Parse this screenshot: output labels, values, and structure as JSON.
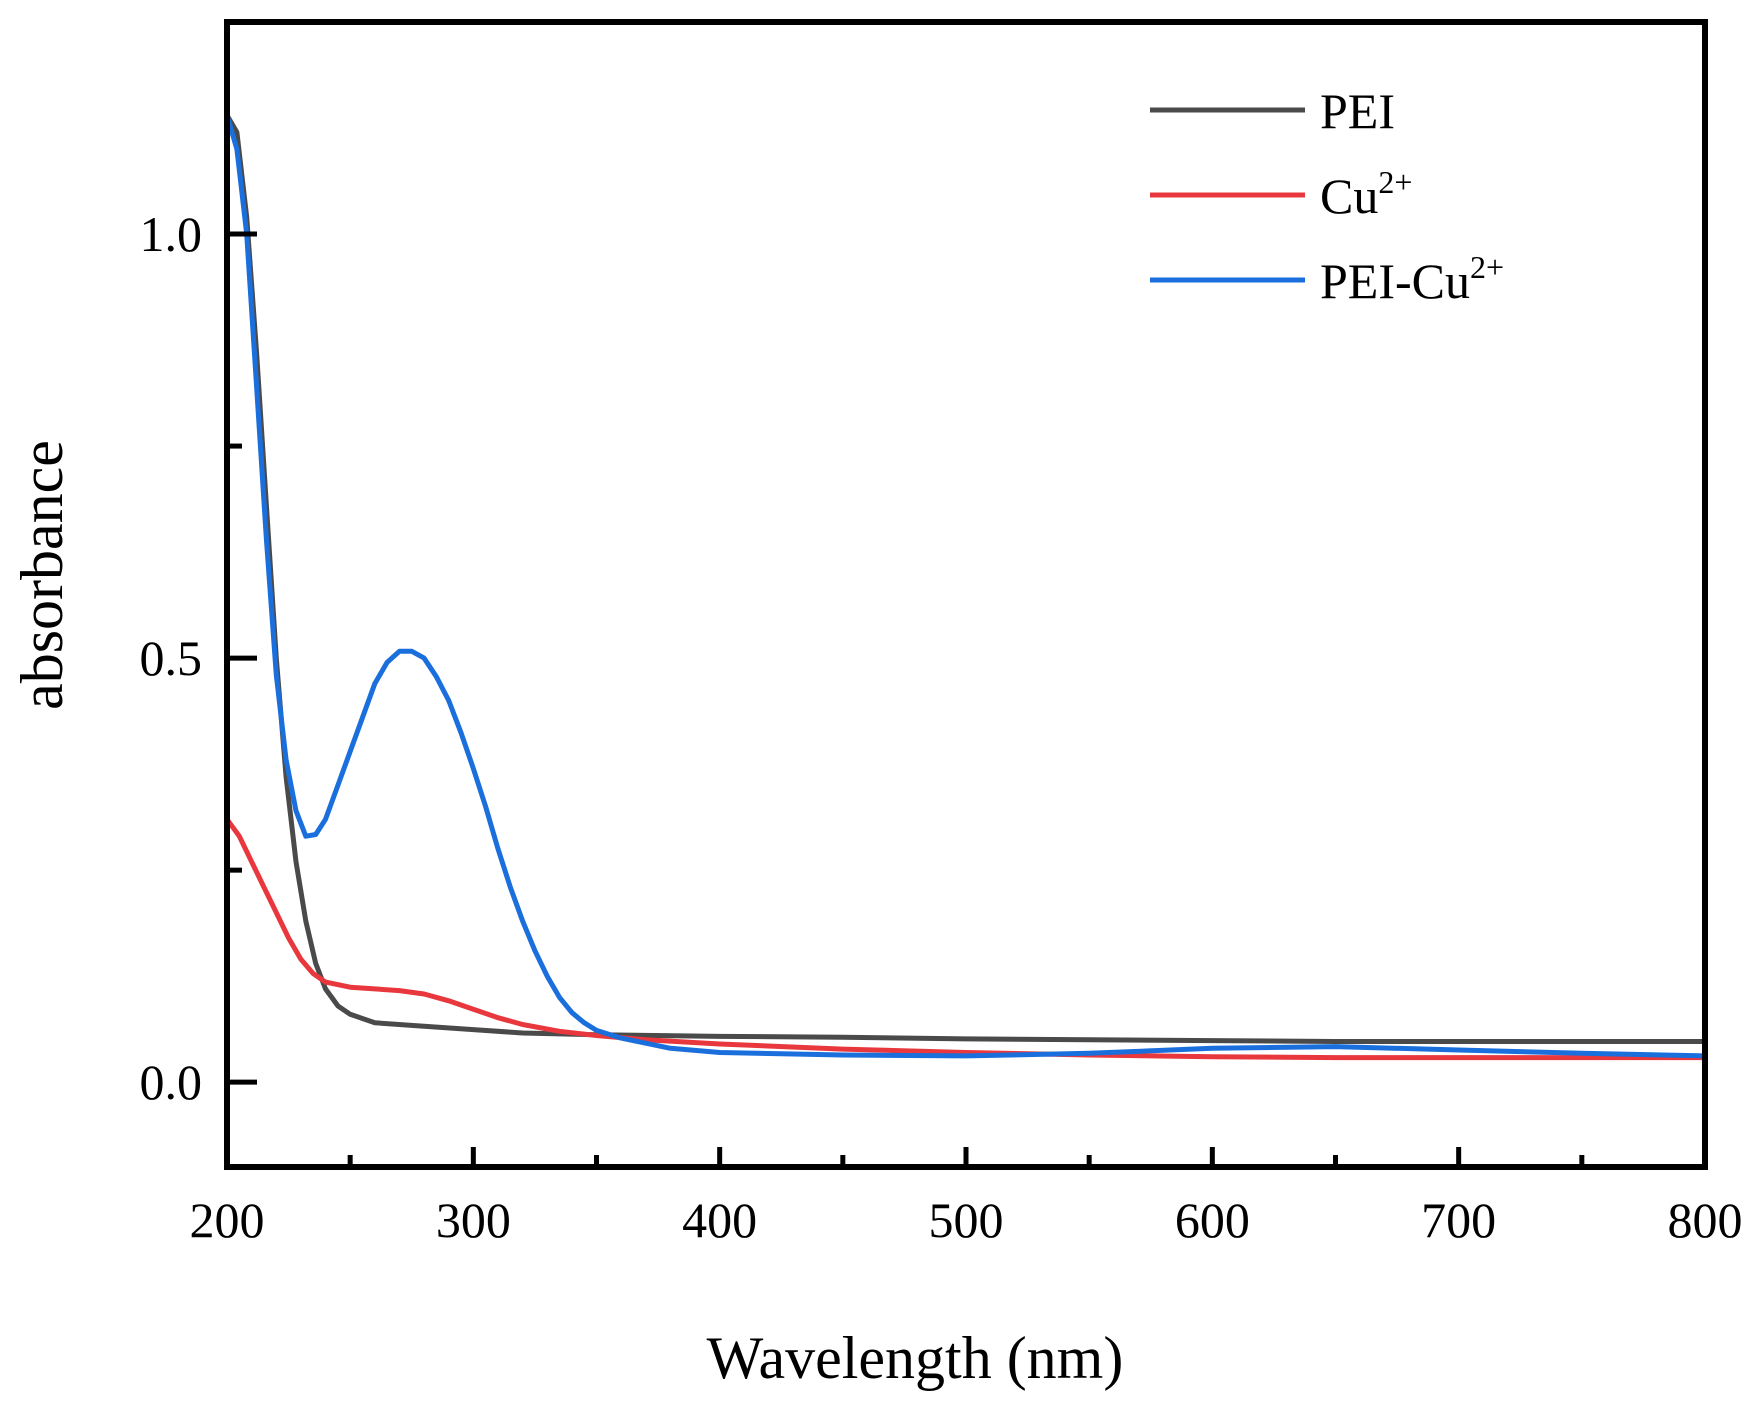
{
  "chart_data": {
    "type": "line",
    "title": "",
    "xlabel": "Wavelength (nm)",
    "ylabel": "absorbance",
    "xlim": [
      200,
      800
    ],
    "ylim": [
      -0.1,
      1.25
    ],
    "x_ticks": [
      200,
      300,
      400,
      500,
      600,
      700,
      800
    ],
    "x_tick_labels": [
      "200",
      "300",
      "400",
      "500",
      "600",
      "700",
      "800"
    ],
    "x_minor_ticks": [
      250,
      350,
      450,
      550,
      650,
      750
    ],
    "y_ticks": [
      0.0,
      0.5,
      1.0
    ],
    "y_tick_labels": [
      "0.0",
      "0.5",
      "1.0"
    ],
    "y_minor_ticks": [
      0.25,
      0.75
    ],
    "grid": false,
    "legend_position": "top-right",
    "series": [
      {
        "name": "PEI",
        "label_base": "PEI",
        "label_sup": "",
        "color": "#4a4a4a",
        "points": [
          [
            200,
            1.14
          ],
          [
            204,
            1.12
          ],
          [
            208,
            1.02
          ],
          [
            212,
            0.86
          ],
          [
            216,
            0.68
          ],
          [
            220,
            0.5
          ],
          [
            224,
            0.36
          ],
          [
            228,
            0.26
          ],
          [
            232,
            0.19
          ],
          [
            236,
            0.14
          ],
          [
            240,
            0.11
          ],
          [
            245,
            0.09
          ],
          [
            250,
            0.08
          ],
          [
            260,
            0.07
          ],
          [
            280,
            0.066
          ],
          [
            300,
            0.062
          ],
          [
            320,
            0.058
          ],
          [
            350,
            0.056
          ],
          [
            400,
            0.054
          ],
          [
            450,
            0.053
          ],
          [
            500,
            0.051
          ],
          [
            550,
            0.05
          ],
          [
            600,
            0.049
          ],
          [
            650,
            0.048
          ],
          [
            700,
            0.048
          ],
          [
            750,
            0.048
          ],
          [
            800,
            0.048
          ]
        ]
      },
      {
        "name": "Cu2+",
        "label_base": "Cu",
        "label_sup": "2+",
        "color": "#e8383d",
        "points": [
          [
            200,
            0.31
          ],
          [
            205,
            0.29
          ],
          [
            210,
            0.26
          ],
          [
            215,
            0.23
          ],
          [
            220,
            0.2
          ],
          [
            225,
            0.17
          ],
          [
            230,
            0.145
          ],
          [
            235,
            0.128
          ],
          [
            240,
            0.118
          ],
          [
            250,
            0.112
          ],
          [
            260,
            0.11
          ],
          [
            270,
            0.108
          ],
          [
            280,
            0.104
          ],
          [
            290,
            0.096
          ],
          [
            300,
            0.086
          ],
          [
            310,
            0.076
          ],
          [
            320,
            0.068
          ],
          [
            335,
            0.06
          ],
          [
            350,
            0.055
          ],
          [
            370,
            0.05
          ],
          [
            400,
            0.045
          ],
          [
            450,
            0.039
          ],
          [
            500,
            0.035
          ],
          [
            550,
            0.032
          ],
          [
            600,
            0.03
          ],
          [
            650,
            0.029
          ],
          [
            700,
            0.029
          ],
          [
            750,
            0.029
          ],
          [
            800,
            0.029
          ]
        ]
      },
      {
        "name": "PEI-Cu2+",
        "label_base": "PEI-Cu",
        "label_sup": "2+",
        "color": "#1a6fdc",
        "points": [
          [
            200,
            1.14
          ],
          [
            204,
            1.1
          ],
          [
            208,
            1.0
          ],
          [
            212,
            0.82
          ],
          [
            216,
            0.64
          ],
          [
            220,
            0.48
          ],
          [
            224,
            0.38
          ],
          [
            228,
            0.32
          ],
          [
            232,
            0.29
          ],
          [
            236,
            0.292
          ],
          [
            240,
            0.31
          ],
          [
            245,
            0.35
          ],
          [
            250,
            0.39
          ],
          [
            255,
            0.43
          ],
          [
            260,
            0.47
          ],
          [
            265,
            0.495
          ],
          [
            270,
            0.508
          ],
          [
            275,
            0.508
          ],
          [
            280,
            0.5
          ],
          [
            285,
            0.478
          ],
          [
            290,
            0.45
          ],
          [
            295,
            0.412
          ],
          [
            300,
            0.37
          ],
          [
            305,
            0.325
          ],
          [
            310,
            0.275
          ],
          [
            315,
            0.23
          ],
          [
            320,
            0.19
          ],
          [
            325,
            0.155
          ],
          [
            330,
            0.125
          ],
          [
            335,
            0.1
          ],
          [
            340,
            0.082
          ],
          [
            345,
            0.07
          ],
          [
            350,
            0.061
          ],
          [
            360,
            0.052
          ],
          [
            370,
            0.046
          ],
          [
            380,
            0.04
          ],
          [
            400,
            0.035
          ],
          [
            450,
            0.032
          ],
          [
            500,
            0.031
          ],
          [
            550,
            0.034
          ],
          [
            600,
            0.04
          ],
          [
            650,
            0.042
          ],
          [
            700,
            0.038
          ],
          [
            750,
            0.034
          ],
          [
            800,
            0.031
          ]
        ]
      }
    ]
  }
}
